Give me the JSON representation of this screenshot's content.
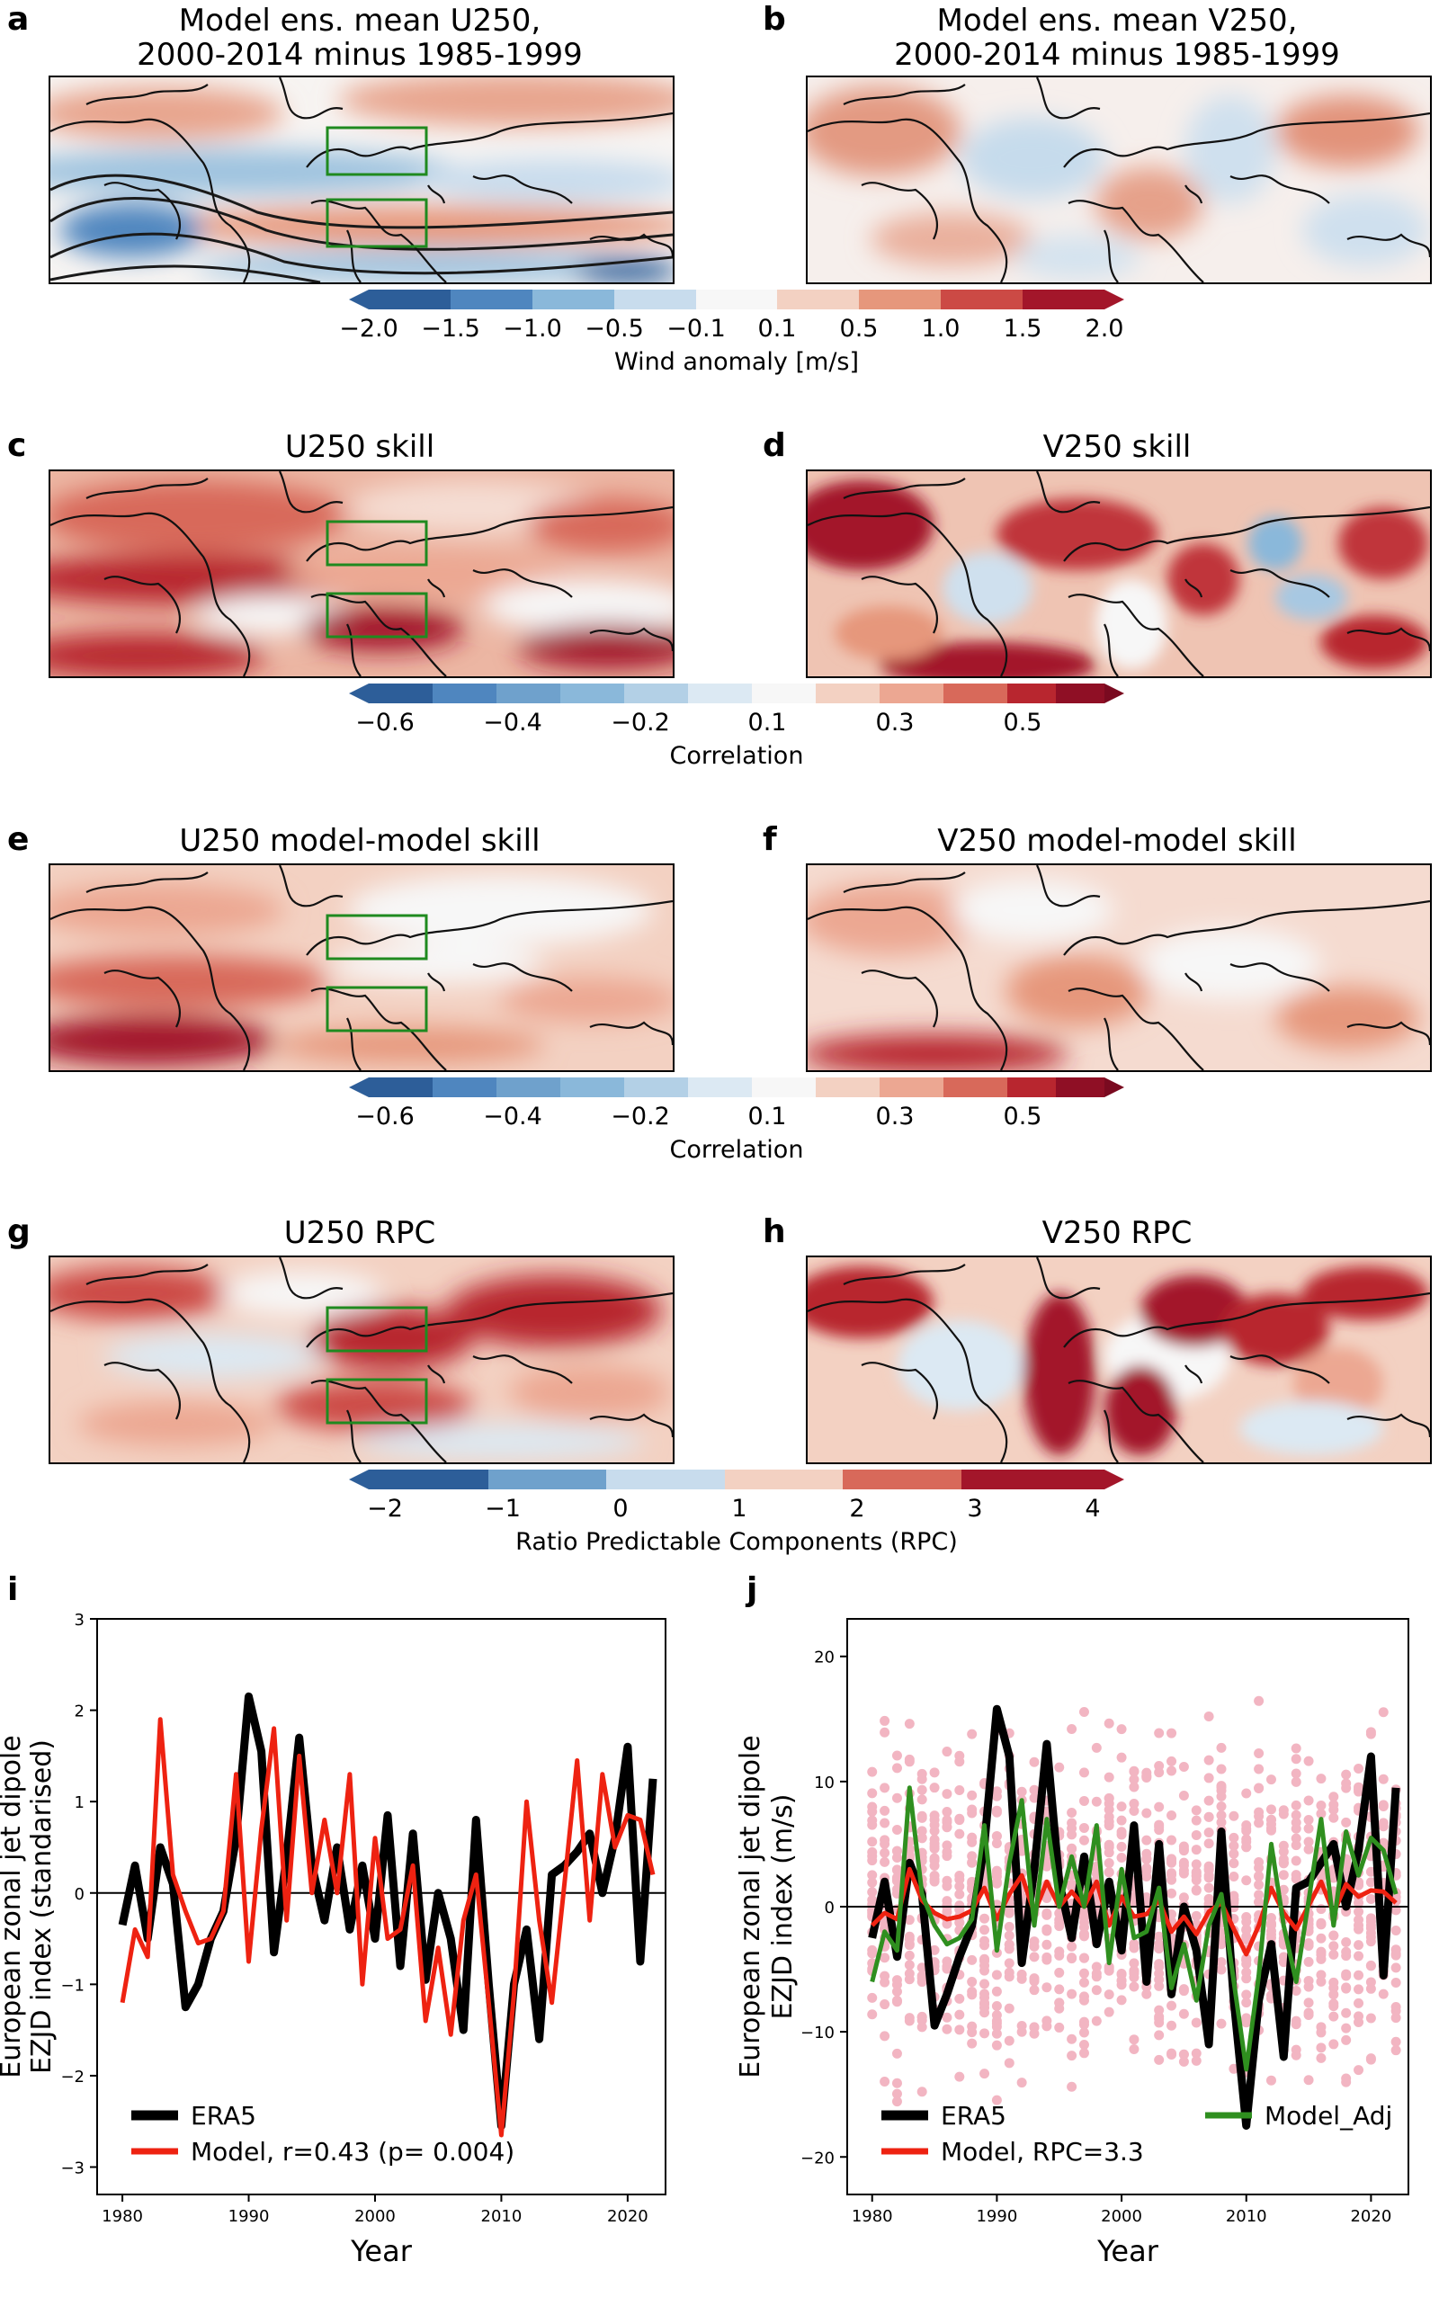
{
  "panels": {
    "a": {
      "letter": "a",
      "title_line1": "Model ens. mean U250,",
      "title_line2": "2000-2014 minus 1985-1999"
    },
    "b": {
      "letter": "b",
      "title_line1": "Model ens. mean V250,",
      "title_line2": "2000-2014 minus 1985-1999"
    },
    "c": {
      "letter": "c",
      "title": "U250 skill"
    },
    "d": {
      "letter": "d",
      "title": "V250 skill"
    },
    "e": {
      "letter": "e",
      "title": "U250 model-model skill"
    },
    "f": {
      "letter": "f",
      "title": "V250 model-model skill"
    },
    "g": {
      "letter": "g",
      "title": "U250 RPC"
    },
    "h": {
      "letter": "h",
      "title": "V250 RPC"
    },
    "i": {
      "letter": "i"
    },
    "j": {
      "letter": "j"
    }
  },
  "colorbars": {
    "wind": {
      "label": "Wind anomaly [m/s]",
      "ticks": [
        "−2.0",
        "−1.5",
        "−1.0",
        "−0.5",
        "−0.1",
        "0.1",
        "0.5",
        "1.0",
        "1.5",
        "2.0"
      ]
    },
    "corr1": {
      "label": "Correlation",
      "ticks": [
        "−0.6",
        "−0.4",
        "−0.2",
        "0.1",
        "0.3",
        "0.5"
      ]
    },
    "corr2": {
      "label": "Correlation",
      "ticks": [
        "−0.6",
        "−0.4",
        "−0.2",
        "0.1",
        "0.3",
        "0.5"
      ]
    },
    "rpc": {
      "label": "Ratio Predictable Components (RPC)",
      "ticks": [
        "−2",
        "−1",
        "0",
        "1",
        "2",
        "3",
        "4"
      ]
    }
  },
  "colors": {
    "era5": "#000000",
    "model": "#ee2211",
    "model_adj": "#2f8f1f",
    "members": "#f2b5c2",
    "box": "#1f8a1f"
  },
  "chart_data": [
    {
      "type": "line",
      "panel": "i",
      "xlabel": "Year",
      "ylabel_line1": "European zonal jet dipole",
      "ylabel_line2": "EZJD index (standarised)",
      "xlim": [
        1978,
        2023
      ],
      "ylim": [
        -3.3,
        3.0
      ],
      "xticks": [
        1980,
        1990,
        2000,
        2010,
        2020
      ],
      "yticks": [
        -3,
        -2,
        -1,
        0,
        1,
        2,
        3
      ],
      "x": [
        1980,
        1981,
        1982,
        1983,
        1984,
        1985,
        1986,
        1987,
        1988,
        1989,
        1990,
        1991,
        1992,
        1993,
        1994,
        1995,
        1996,
        1997,
        1998,
        1999,
        2000,
        2001,
        2002,
        2003,
        2004,
        2005,
        2006,
        2007,
        2008,
        2009,
        2010,
        2011,
        2012,
        2013,
        2014,
        2015,
        2016,
        2017,
        2018,
        2019,
        2020,
        2021,
        2022
      ],
      "series": [
        {
          "name": "ERA5",
          "values": [
            -0.35,
            0.3,
            -0.5,
            0.5,
            0.1,
            -1.25,
            -1.0,
            -0.5,
            -0.2,
            0.6,
            2.15,
            1.55,
            -0.65,
            0.4,
            1.7,
            0.3,
            -0.3,
            0.5,
            -0.4,
            0.3,
            -0.5,
            0.85,
            -0.8,
            0.65,
            -0.95,
            0.0,
            -0.5,
            -1.5,
            0.8,
            -1.0,
            -2.55,
            -1.0,
            -0.4,
            -1.6,
            0.2,
            0.3,
            0.45,
            0.65,
            0.0,
            0.6,
            1.6,
            -0.75,
            1.25
          ]
        },
        {
          "name": "Model, r=0.43 (p= 0.004)",
          "values": [
            -1.2,
            -0.4,
            -0.7,
            1.9,
            0.2,
            -0.2,
            -0.55,
            -0.5,
            -0.2,
            1.3,
            -0.75,
            0.7,
            1.8,
            -0.3,
            1.5,
            0.0,
            0.8,
            0.0,
            1.3,
            -1.0,
            0.6,
            -0.5,
            -0.4,
            0.3,
            -1.4,
            -0.6,
            -1.55,
            -0.3,
            0.2,
            -1.2,
            -2.65,
            -1.1,
            1.0,
            -0.3,
            -1.2,
            0.1,
            1.45,
            -0.3,
            1.3,
            0.5,
            0.85,
            0.8,
            0.2
          ]
        }
      ],
      "legend": [
        "ERA5",
        "Model, r=0.43 (p= 0.004)"
      ],
      "legend_loc": "lower-left"
    },
    {
      "type": "line",
      "panel": "j",
      "xlabel": "Year",
      "ylabel_line1": "European zonal jet dipole",
      "ylabel_line2": "EZJD index (m/s)",
      "xlim": [
        1978,
        2023
      ],
      "ylim": [
        -23,
        23
      ],
      "xticks": [
        1980,
        1990,
        2000,
        2010,
        2020
      ],
      "yticks": [
        -20,
        -10,
        0,
        10,
        20
      ],
      "x": [
        1980,
        1981,
        1982,
        1983,
        1984,
        1985,
        1986,
        1987,
        1988,
        1989,
        1990,
        1991,
        1992,
        1993,
        1994,
        1995,
        1996,
        1997,
        1998,
        1999,
        2000,
        2001,
        2002,
        2003,
        2004,
        2005,
        2006,
        2007,
        2008,
        2009,
        2010,
        2011,
        2012,
        2013,
        2014,
        2015,
        2016,
        2017,
        2018,
        2019,
        2020,
        2021,
        2022
      ],
      "series": [
        {
          "name": "ERA5",
          "values": [
            -2.5,
            2.0,
            -4.0,
            3.5,
            1.0,
            -9.5,
            -7.0,
            -4.0,
            -1.5,
            5.0,
            15.8,
            12.0,
            -4.5,
            3.0,
            13.0,
            2.0,
            -2.5,
            4.0,
            -3.0,
            2.0,
            -3.5,
            6.5,
            -6.0,
            5.0,
            -7.0,
            0.0,
            -3.5,
            -11.0,
            6.0,
            -7.5,
            -17.5,
            -7.5,
            -3.0,
            -12.0,
            1.5,
            2.0,
            3.5,
            5.0,
            0.0,
            4.5,
            12.0,
            -5.5,
            9.5
          ]
        },
        {
          "name": "Model, RPC=3.3",
          "values": [
            -1.5,
            -0.5,
            -1.0,
            3.0,
            0.5,
            -0.5,
            -1.0,
            -0.8,
            -0.3,
            1.5,
            -1.0,
            1.0,
            2.5,
            -0.5,
            2.0,
            0.0,
            1.2,
            0.0,
            2.0,
            -1.5,
            0.8,
            -0.8,
            -0.6,
            0.5,
            -2.0,
            -0.8,
            -2.2,
            -0.4,
            0.3,
            -1.8,
            -3.8,
            -1.5,
            1.5,
            -0.5,
            -1.8,
            0.1,
            2.0,
            -0.5,
            1.8,
            0.8,
            1.3,
            1.2,
            0.3
          ]
        },
        {
          "name": "Model_Adj",
          "values": [
            -6.0,
            -2.0,
            -3.5,
            9.5,
            1.0,
            -1.5,
            -3.0,
            -2.5,
            -1.0,
            6.5,
            -3.5,
            3.5,
            8.5,
            -1.5,
            7.0,
            0.0,
            4.0,
            0.0,
            6.5,
            -4.5,
            3.0,
            -2.5,
            -2.0,
            1.5,
            -6.5,
            -3.0,
            -7.5,
            -1.5,
            1.0,
            -6.0,
            -13.0,
            -5.5,
            5.0,
            -1.5,
            -6.0,
            0.5,
            7.0,
            -1.5,
            6.0,
            2.5,
            5.5,
            4.5,
            1.0
          ]
        }
      ],
      "legend": [
        "ERA5",
        "Model, RPC=3.3",
        "Model_Adj"
      ],
      "legend_loc": "lower",
      "scatter_note": "ensemble member dots (pink)"
    }
  ]
}
